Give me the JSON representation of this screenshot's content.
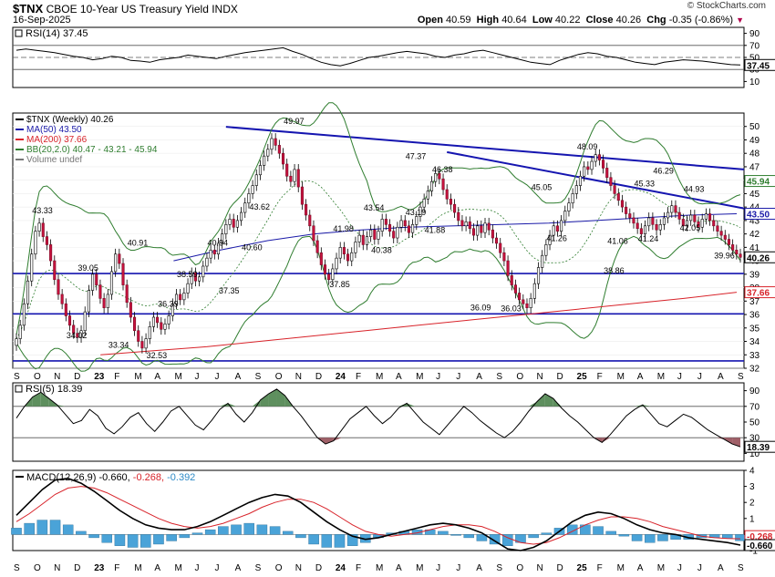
{
  "header": {
    "symbol": "$TNX",
    "name": "CBOE 10-Year US Treasury Yield INDX",
    "date": "16-Sep-2025",
    "credit": "© StockCharts.com",
    "open_label": "Open",
    "open": "40.59",
    "high_label": "High",
    "high": "40.64",
    "low_label": "Low",
    "low": "40.22",
    "close_label": "Close",
    "close": "40.26",
    "chg_label": "Chg",
    "chg": "-0.35 (-0.86%)"
  },
  "chart_data": [
    {
      "type": "line",
      "panel": "rsi14",
      "title": "RSI(14) 37.45",
      "ylim": [
        0,
        100
      ],
      "ticks": [
        10,
        30,
        50,
        70,
        90
      ],
      "reference_lines": [
        30,
        50,
        70
      ],
      "last_value_label": "37.45",
      "values": [
        62,
        64,
        62,
        60,
        58,
        55,
        52,
        50,
        46,
        48,
        52,
        50,
        45,
        44,
        42,
        46,
        48,
        50,
        54,
        52,
        50,
        48,
        52,
        55,
        58,
        60,
        62,
        64,
        66,
        60,
        55,
        48,
        42,
        38,
        36,
        40,
        45,
        50,
        52,
        55,
        58,
        60,
        58,
        56,
        52,
        50,
        54,
        56,
        60,
        62,
        58,
        54,
        50,
        46,
        42,
        40,
        38,
        45,
        50,
        55,
        58,
        56,
        52,
        50,
        46,
        42,
        40,
        38,
        42,
        44,
        46,
        45,
        44,
        42,
        40,
        38,
        37.45
      ]
    },
    {
      "type": "line",
      "panel": "price",
      "legend": [
        {
          "label": "$TNX (Weekly) 40.26",
          "color": "#000000"
        },
        {
          "label": "MA(50) 43.50",
          "color": "#1a1aa8"
        },
        {
          "label": "MA(200) 37.66",
          "color": "#d8232a"
        },
        {
          "label": "BB(20,2.0) 40.47 - 43.21 - 45.94",
          "color": "#2f7d2f"
        },
        {
          "label": "Volume undef",
          "color": "#777777"
        }
      ],
      "ylim": [
        32,
        51
      ],
      "yticks": [
        32,
        33,
        34,
        35,
        36,
        37,
        38,
        39,
        40,
        41,
        42,
        43,
        44,
        45,
        46,
        47,
        48,
        49,
        50
      ],
      "x_labels": [
        "S",
        "O",
        "N",
        "D",
        "23",
        "F",
        "M",
        "A",
        "M",
        "J",
        "J",
        "A",
        "S",
        "O",
        "N",
        "D",
        "24",
        "F",
        "M",
        "A",
        "M",
        "J",
        "J",
        "A",
        "S",
        "O",
        "N",
        "D",
        "25",
        "F",
        "M",
        "A",
        "M",
        "J",
        "J",
        "A",
        "S"
      ],
      "annotations": [
        {
          "text": "43.33",
          "x": 5,
          "y": 43.33
        },
        {
          "text": "34.02",
          "x": 12,
          "y": 34.02
        },
        {
          "text": "39.05",
          "x": 14,
          "y": 39.05
        },
        {
          "text": "33.34",
          "x": 20,
          "y": 33.34
        },
        {
          "text": "40.91",
          "x": 24,
          "y": 40.91
        },
        {
          "text": "36.39",
          "x": 30,
          "y": 36.39
        },
        {
          "text": "32.53",
          "x": 28,
          "y": 32.53
        },
        {
          "text": "38.59",
          "x": 34,
          "y": 38.59
        },
        {
          "text": "37.35",
          "x": 42,
          "y": 37.35
        },
        {
          "text": "40.94",
          "x": 40,
          "y": 40.94
        },
        {
          "text": "40.60",
          "x": 47,
          "y": 40.6
        },
        {
          "text": "43.62",
          "x": 48,
          "y": 43.62
        },
        {
          "text": "49.97",
          "x": 55,
          "y": 49.97
        },
        {
          "text": "37.85",
          "x": 64,
          "y": 37.85
        },
        {
          "text": "41.98",
          "x": 65,
          "y": 41.98
        },
        {
          "text": "43.54",
          "x": 71,
          "y": 43.54
        },
        {
          "text": "40.38",
          "x": 72,
          "y": 40.38
        },
        {
          "text": "43.19",
          "x": 79,
          "y": 43.19
        },
        {
          "text": "47.37",
          "x": 79,
          "y": 47.37
        },
        {
          "text": "46.38",
          "x": 84,
          "y": 46.38
        },
        {
          "text": "41.88",
          "x": 83,
          "y": 41.88
        },
        {
          "text": "36.09",
          "x": 92,
          "y": 36.09
        },
        {
          "text": "36.03",
          "x": 98,
          "y": 36.03
        },
        {
          "text": "45.05",
          "x": 104,
          "y": 45.05
        },
        {
          "text": "41.26",
          "x": 107,
          "y": 41.26
        },
        {
          "text": "48.09",
          "x": 113,
          "y": 48.09
        },
        {
          "text": "41.06",
          "x": 119,
          "y": 41.06
        },
        {
          "text": "38.86",
          "x": 118,
          "y": 38.86
        },
        {
          "text": "45.33",
          "x": 124,
          "y": 45.33
        },
        {
          "text": "41.24",
          "x": 125,
          "y": 41.24
        },
        {
          "text": "46.29",
          "x": 128,
          "y": 46.29
        },
        {
          "text": "44.93",
          "x": 134,
          "y": 44.93
        },
        {
          "text": "42.05",
          "x": 133,
          "y": 42.05
        },
        {
          "text": "39.96",
          "x": 140,
          "y": 39.96
        }
      ],
      "right_labels": [
        {
          "text": "45.94",
          "y": 45.94,
          "color": "#2f7d2f"
        },
        {
          "text": "43.50",
          "y": 43.5,
          "color": "#1a1aa8"
        },
        {
          "text": "40.26",
          "y": 40.26,
          "color": "#000000"
        },
        {
          "text": "37.66",
          "y": 37.66,
          "color": "#d8232a"
        }
      ],
      "close": [
        34.2,
        35.2,
        36.8,
        38.5,
        40.5,
        42.2,
        42.8,
        41.8,
        41.2,
        40.0,
        38.6,
        37.5,
        36.8,
        35.9,
        35.2,
        34.6,
        34.3,
        34.8,
        36.2,
        37.8,
        39.0,
        38.2,
        37.2,
        36.5,
        37.5,
        39.2,
        40.5,
        39.8,
        38.2,
        36.9,
        35.8,
        34.8,
        34.0,
        33.5,
        34.2,
        35.1,
        35.8,
        35.4,
        34.9,
        35.3,
        35.9,
        36.8,
        37.5,
        37.1,
        37.6,
        38.3,
        39.1,
        38.5,
        38.8,
        39.6,
        40.2,
        40.8,
        40.5,
        41.3,
        42.0,
        42.7,
        43.1,
        42.5,
        43.0,
        43.6,
        44.3,
        45.0,
        45.6,
        46.4,
        47.1,
        47.8,
        48.3,
        49.1,
        48.6,
        48.0,
        47.2,
        46.3,
        45.9,
        46.8,
        45.5,
        44.2,
        43.4,
        42.6,
        41.5,
        40.6,
        39.7,
        39.0,
        38.6,
        39.4,
        40.2,
        41.0,
        40.5,
        40.0,
        40.6,
        41.4,
        41.9,
        41.2,
        41.8,
        42.3,
        41.6,
        42.2,
        43.1,
        42.7,
        42.2,
        41.7,
        42.5,
        43.0,
        42.6,
        42.1,
        42.7,
        43.3,
        44.0,
        44.6,
        45.2,
        45.9,
        46.5,
        46.1,
        45.3,
        44.6,
        44.2,
        43.6,
        43.0,
        42.6,
        42.9,
        42.4,
        41.9,
        42.6,
        42.1,
        42.8,
        42.3,
        41.7,
        41.3,
        40.6,
        40.0,
        38.9,
        38.2,
        37.6,
        37.1,
        36.8,
        36.5,
        37.2,
        38.3,
        39.5,
        40.4,
        41.2,
        41.9,
        42.6,
        42.2,
        43.0,
        43.7,
        44.3,
        45.0,
        45.6,
        46.3,
        47.0,
        46.8,
        47.4,
        47.9,
        47.5,
        46.9,
        46.2,
        45.6,
        45.0,
        44.5,
        44.0,
        43.5,
        43.2,
        42.8,
        42.4,
        42.0,
        42.6,
        43.2,
        42.7,
        42.3,
        42.7,
        43.2,
        43.6,
        44.1,
        43.6,
        43.1,
        42.6,
        43.0,
        43.4,
        42.9,
        42.5,
        43.1,
        43.5,
        43.0,
        42.6,
        42.2,
        41.9,
        41.6,
        41.2,
        40.8,
        40.5,
        40.26
      ],
      "ma50": [
        40.0,
        40.8,
        41.5,
        42.0,
        42.3,
        42.5,
        42.6,
        42.7,
        42.8,
        43.0,
        43.2,
        43.4,
        43.5
      ],
      "ma200": [
        33.0,
        33.3,
        33.6,
        34.0,
        34.4,
        34.8,
        35.2,
        35.6,
        36.0,
        36.4,
        36.8,
        37.2,
        37.66
      ]
    },
    {
      "type": "line",
      "panel": "rsi5",
      "title": "RSI(5) 18.39",
      "ylim": [
        0,
        100
      ],
      "ticks": [
        10,
        30,
        50,
        70,
        90
      ],
      "reference_lines": [
        30,
        70
      ],
      "last_value_label": "18.39",
      "values": [
        55,
        70,
        82,
        88,
        80,
        72,
        60,
        48,
        52,
        66,
        58,
        42,
        35,
        44,
        56,
        62,
        48,
        38,
        50,
        64,
        70,
        58,
        46,
        40,
        52,
        66,
        74,
        60,
        50,
        62,
        78,
        86,
        92,
        84,
        70,
        58,
        44,
        30,
        22,
        26,
        40,
        54,
        62,
        70,
        58,
        48,
        56,
        68,
        74,
        62,
        50,
        42,
        34,
        46,
        58,
        70,
        62,
        52,
        44,
        36,
        30,
        38,
        50,
        64,
        76,
        86,
        80,
        68,
        58,
        50,
        40,
        30,
        24,
        34,
        46,
        58,
        66,
        72,
        60,
        48,
        44,
        52,
        60,
        56,
        48,
        40,
        34,
        28,
        22,
        18.39
      ]
    },
    {
      "type": "line",
      "panel": "macd",
      "title": "MACD(12,26,9) -0.660, -0.268, -0.392",
      "ylim": [
        -1,
        4
      ],
      "ticks": [
        -1,
        0,
        1,
        2,
        3,
        4
      ],
      "labels": [
        "-0.660",
        "-0.268",
        "-0.392"
      ],
      "macd": [
        1.2,
        2.0,
        2.8,
        3.4,
        3.5,
        3.2,
        2.7,
        2.1,
        1.5,
        1.0,
        0.6,
        0.4,
        0.3,
        0.3,
        0.5,
        0.8,
        1.2,
        1.6,
        2.0,
        2.3,
        2.5,
        2.4,
        2.0,
        1.4,
        0.8,
        0.3,
        -0.1,
        -0.3,
        -0.2,
        0.0,
        0.2,
        0.4,
        0.6,
        0.7,
        0.6,
        0.4,
        0.1,
        -0.4,
        -0.9,
        -1.0,
        -0.8,
        -0.4,
        0.2,
        0.8,
        1.2,
        1.4,
        1.3,
        1.0,
        0.6,
        0.3,
        0.1,
        0.0,
        -0.2,
        -0.3,
        -0.4,
        -0.5,
        -0.66
      ],
      "signal": [
        0.8,
        1.3,
        1.9,
        2.5,
        2.9,
        3.0,
        2.9,
        2.6,
        2.2,
        1.8,
        1.4,
        1.0,
        0.7,
        0.5,
        0.4,
        0.5,
        0.7,
        1.0,
        1.3,
        1.7,
        2.0,
        2.2,
        2.2,
        2.0,
        1.6,
        1.1,
        0.6,
        0.2,
        0.0,
        -0.1,
        0.0,
        0.1,
        0.3,
        0.5,
        0.6,
        0.6,
        0.5,
        0.2,
        -0.2,
        -0.5,
        -0.6,
        -0.5,
        -0.2,
        0.2,
        0.6,
        0.9,
        1.1,
        1.1,
        1.0,
        0.8,
        0.5,
        0.3,
        0.1,
        -0.1,
        -0.2,
        -0.25,
        -0.268
      ]
    }
  ],
  "x_axis_bottom": [
    "S",
    "O",
    "N",
    "D",
    "23",
    "F",
    "M",
    "A",
    "M",
    "J",
    "J",
    "A",
    "S",
    "O",
    "N",
    "D",
    "24",
    "F",
    "M",
    "A",
    "M",
    "J",
    "J",
    "A",
    "S",
    "O",
    "N",
    "D",
    "25",
    "F",
    "M",
    "A",
    "M",
    "J",
    "J",
    "A",
    "S"
  ]
}
